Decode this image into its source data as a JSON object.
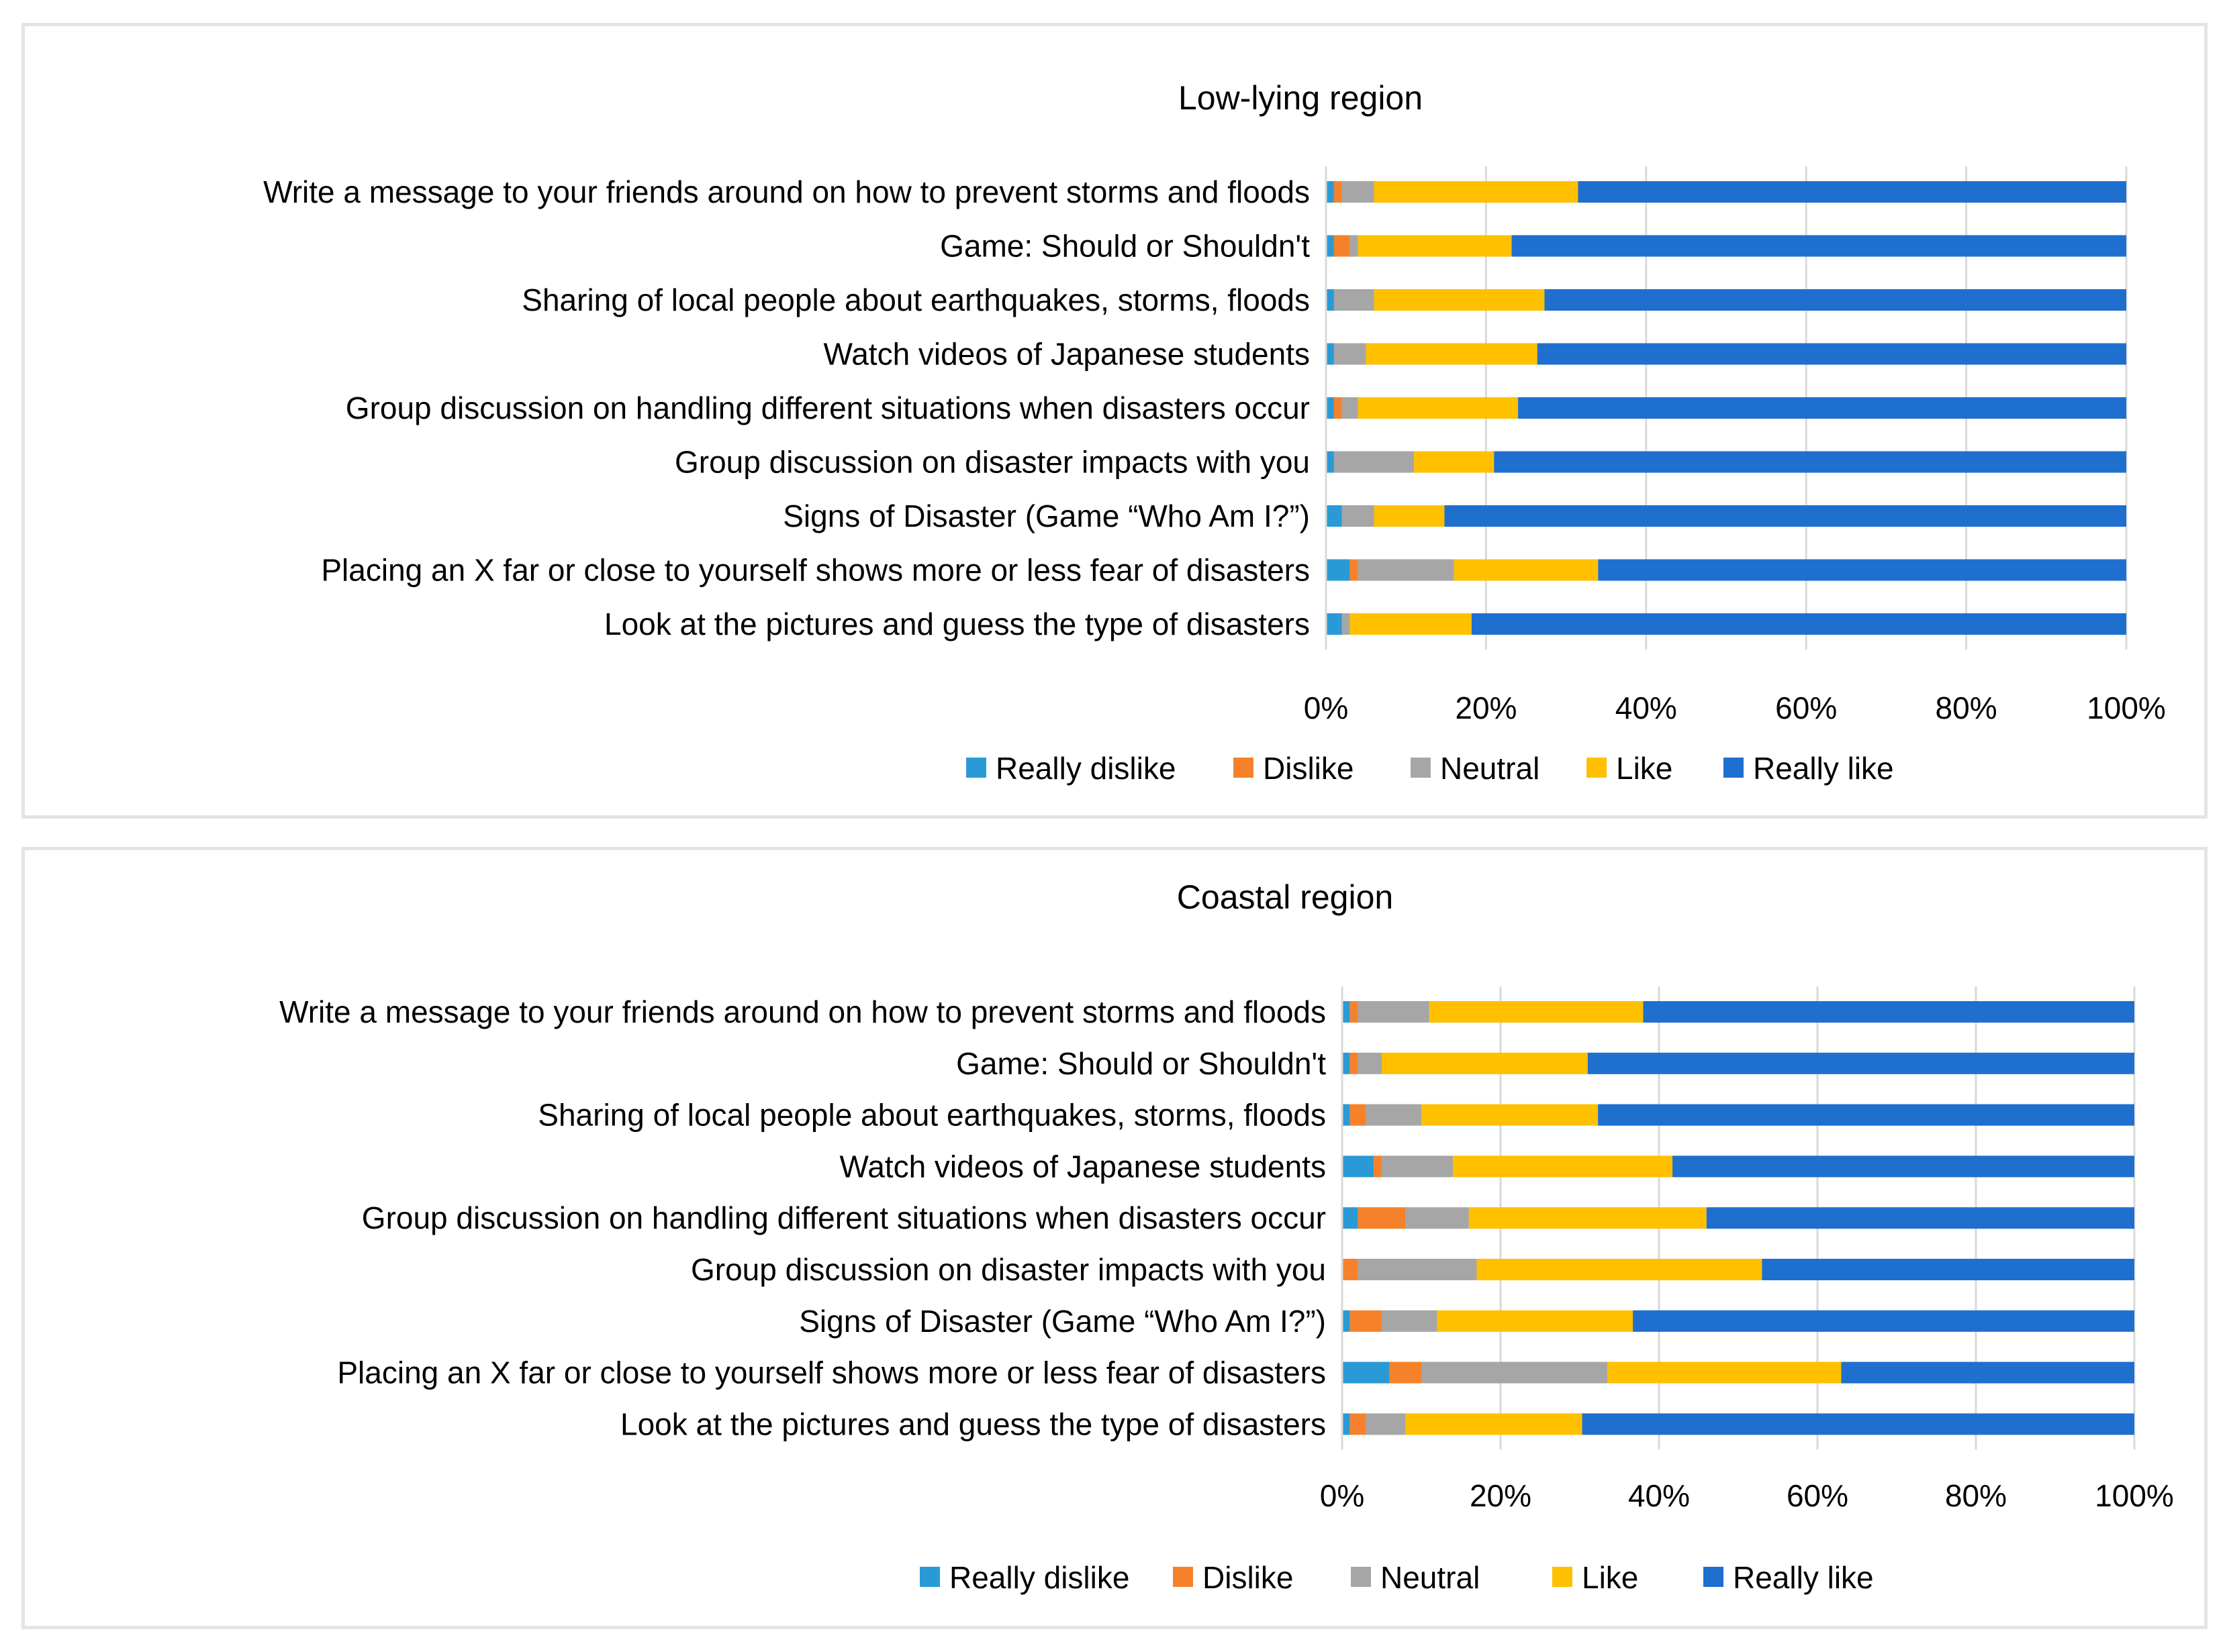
{
  "colors": {
    "really_dislike": "#2a9ad6",
    "dislike": "#f5822a",
    "neutral": "#a6a6a6",
    "like": "#ffc000",
    "really_like": "#1f6fcf",
    "grid": "#d9d9d9",
    "border": "#e4e4e4"
  },
  "chart_data": [
    {
      "type": "bar",
      "orientation": "horizontal",
      "stacked": "percent",
      "title": "Low-lying region",
      "categories": [
        "Write a message to your friends around on how to prevent storms and floods",
        "Game: Should or Shouldn't",
        "Sharing of local people about earthquakes, storms, floods",
        "Watch videos of Japanese students",
        "Group discussion on handling different situations when disasters occur",
        "Group discussion on disaster impacts with you",
        "Signs of Disaster (Game “Who Am I?”)",
        "Placing an X far or close to yourself shows more or less fear of disasters",
        "Look at the pictures and guess the type of disasters"
      ],
      "series": [
        {
          "name": "Really dislike",
          "values": [
            1.0,
            1.0,
            1.0,
            1.0,
            1.0,
            1.0,
            2.0,
            3.0,
            2.0
          ]
        },
        {
          "name": "Dislike",
          "values": [
            1.0,
            2.0,
            0.0,
            0.0,
            1.0,
            0.0,
            0.0,
            1.0,
            0.0
          ]
        },
        {
          "name": "Neutral",
          "values": [
            4.0,
            1.0,
            5.0,
            4.0,
            2.0,
            10.0,
            4.0,
            12.0,
            1.0
          ]
        },
        {
          "name": "Like",
          "values": [
            25.5,
            19.2,
            21.3,
            21.4,
            20.0,
            10.0,
            8.8,
            18.0,
            15.2
          ]
        },
        {
          "name": "Really like",
          "values": [
            68.5,
            76.8,
            72.7,
            73.6,
            76.0,
            79.0,
            85.2,
            66.0,
            81.8
          ]
        }
      ],
      "xlim": [
        0,
        100
      ],
      "x_ticks": [
        "0%",
        "20%",
        "40%",
        "60%",
        "80%",
        "100%"
      ],
      "grid": true,
      "legend": "bottom"
    },
    {
      "type": "bar",
      "orientation": "horizontal",
      "stacked": "percent",
      "title": "Coastal region",
      "categories": [
        "Write a message to your friends around on how to prevent storms and floods",
        "Game: Should or Shouldn't",
        "Sharing of local people about earthquakes, storms, floods",
        "Watch videos of Japanese students",
        "Group discussion on handling different situations when disasters occur",
        "Group discussion on disaster impacts with you",
        "Signs of Disaster (Game “Who Am I?”)",
        "Placing an X far or close to yourself shows more or less fear of disasters",
        "Look at the pictures and guess the type of disasters"
      ],
      "series": [
        {
          "name": "Really dislike",
          "values": [
            1.0,
            1.0,
            1.0,
            4.0,
            2.0,
            0.0,
            1.0,
            6.0,
            1.0
          ]
        },
        {
          "name": "Dislike",
          "values": [
            1.0,
            1.0,
            2.0,
            1.0,
            6.0,
            2.0,
            4.0,
            4.0,
            2.0
          ]
        },
        {
          "name": "Neutral",
          "values": [
            9.0,
            3.0,
            7.0,
            9.0,
            8.0,
            15.0,
            7.0,
            23.5,
            5.0
          ]
        },
        {
          "name": "Like",
          "values": [
            27.0,
            26.0,
            22.3,
            27.7,
            30.0,
            36.0,
            24.7,
            29.5,
            22.3
          ]
        },
        {
          "name": "Really like",
          "values": [
            62.0,
            69.0,
            67.7,
            58.3,
            54.0,
            47.0,
            63.3,
            37.0,
            69.7
          ]
        }
      ],
      "xlim": [
        0,
        100
      ],
      "x_ticks": [
        "0%",
        "20%",
        "40%",
        "60%",
        "80%",
        "100%"
      ],
      "grid": true,
      "legend": "bottom"
    }
  ]
}
